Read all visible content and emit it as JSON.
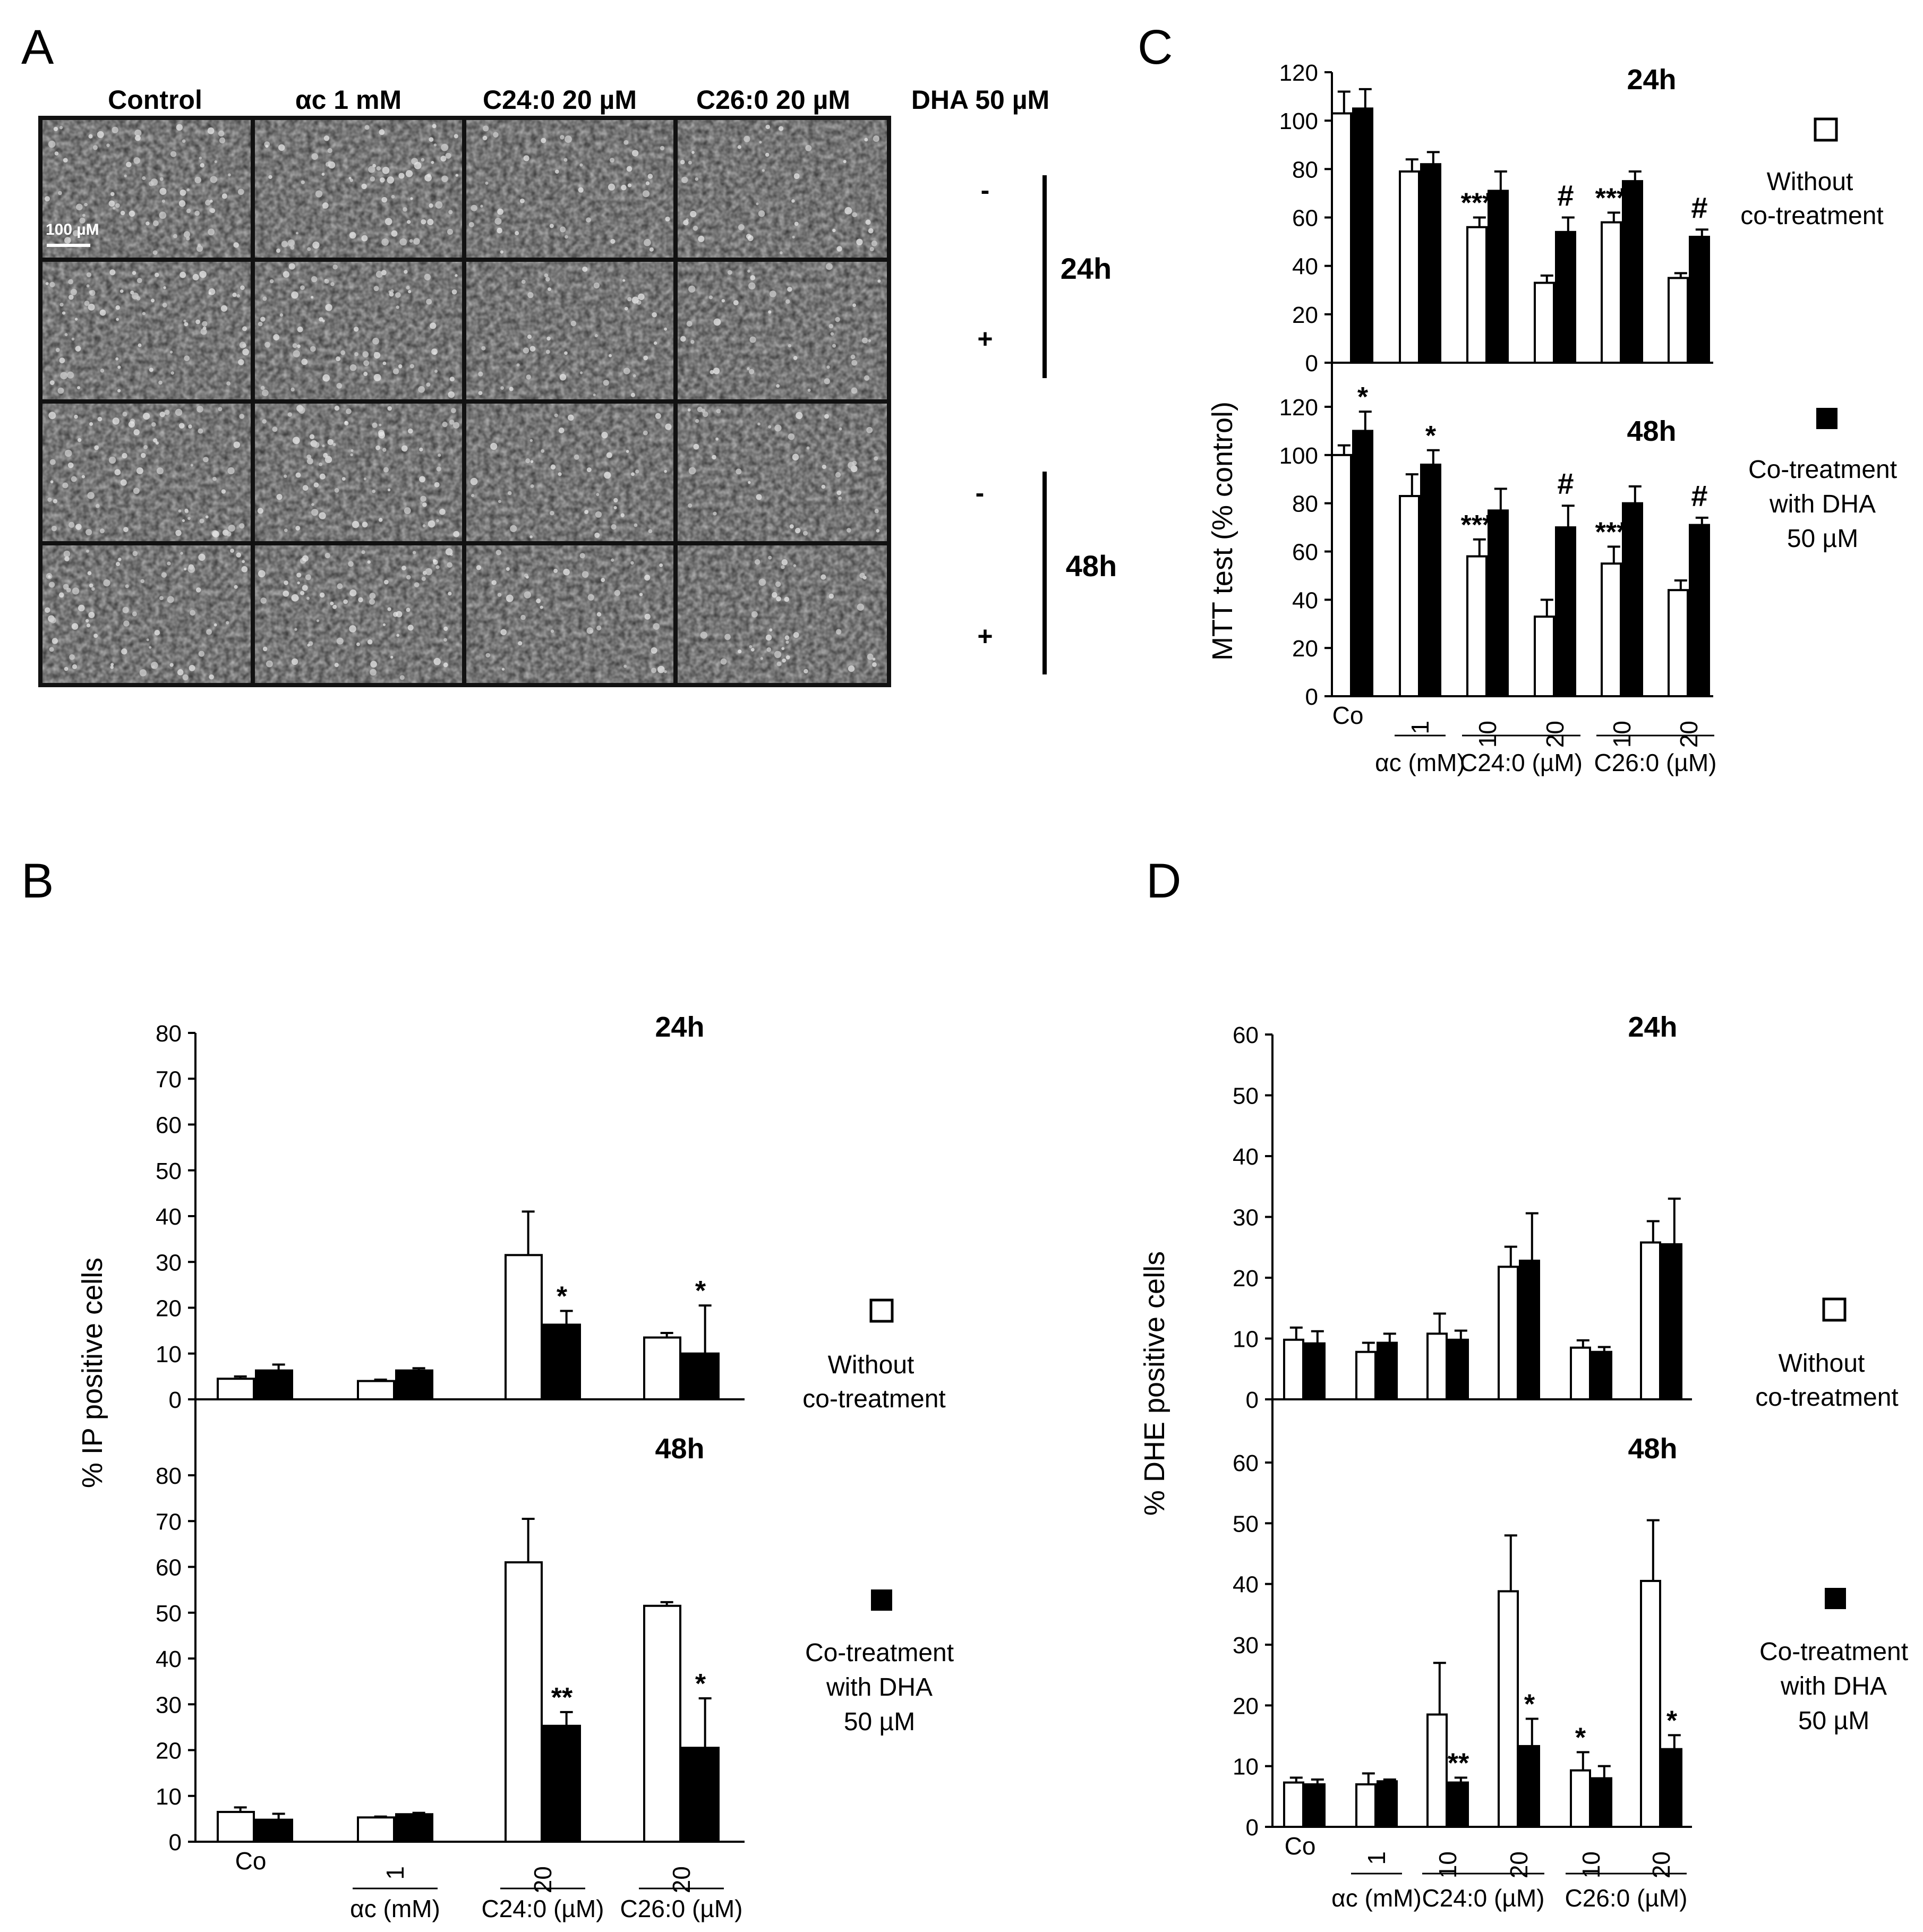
{
  "panels": {
    "A": {
      "letter": "A",
      "columns": [
        "Control",
        "αc 1 mM",
        "C24:0 20 µM",
        "C26:0 20 µM"
      ],
      "dha_header": "DHA 50 µM",
      "row_signs": [
        "-",
        "+",
        "-",
        "+"
      ],
      "time_labels": [
        "24h",
        "48h"
      ],
      "scale_bar": "100 µM"
    },
    "B": {
      "letter": "B"
    },
    "C": {
      "letter": "C"
    },
    "D": {
      "letter": "D"
    }
  },
  "legend": {
    "without": [
      "Without",
      "co-treatment"
    ],
    "with": [
      "Co-treatment",
      "with DHA",
      "50 µM"
    ]
  },
  "chart_data": [
    {
      "id": "C",
      "type": "bar",
      "ylabel": "MTT test (% control)",
      "categories": [
        "Co",
        "1",
        "10",
        "20",
        "10",
        "20"
      ],
      "groups": [
        {
          "label": "αc (mM)",
          "span": [
            1,
            1
          ]
        },
        {
          "label": "C24:0 (µM)",
          "span": [
            2,
            3
          ]
        },
        {
          "label": "C26:0 (µM)",
          "span": [
            4,
            5
          ]
        }
      ],
      "ylim": [
        0,
        120
      ],
      "yticks": [
        0,
        20,
        40,
        60,
        80,
        100,
        120
      ],
      "subplots": [
        {
          "title": "24h",
          "series": [
            {
              "name": "Without co-treatment",
              "values": [
                103,
                79,
                56,
                33,
                58,
                35
              ],
              "errors": [
                9,
                5,
                4,
                3,
                4,
                2
              ]
            },
            {
              "name": "Co-treatment with DHA 50 µM",
              "values": [
                105,
                82,
                71,
                54,
                75,
                52
              ],
              "errors": [
                8,
                5,
                8,
                6,
                4,
                3
              ]
            }
          ],
          "annotations": [
            {
              "category": 2,
              "series": 0,
              "text": "***"
            },
            {
              "category": 3,
              "series": 1,
              "text": "#"
            },
            {
              "category": 4,
              "series": 0,
              "text": "***"
            },
            {
              "category": 5,
              "series": 1,
              "text": "#"
            }
          ]
        },
        {
          "title": "48h",
          "series": [
            {
              "name": "Without co-treatment",
              "values": [
                100,
                83,
                58,
                33,
                55,
                44
              ],
              "errors": [
                4,
                9,
                7,
                7,
                7,
                4
              ]
            },
            {
              "name": "Co-treatment with DHA 50 µM",
              "values": [
                110,
                96,
                77,
                70,
                80,
                71
              ],
              "errors": [
                8,
                6,
                9,
                9,
                7,
                3
              ]
            }
          ],
          "annotations": [
            {
              "category": 0,
              "series": 1,
              "text": "*"
            },
            {
              "category": 1,
              "series": 1,
              "text": "*"
            },
            {
              "category": 2,
              "series": 0,
              "text": "***"
            },
            {
              "category": 3,
              "series": 1,
              "text": "#"
            },
            {
              "category": 4,
              "series": 0,
              "text": "***"
            },
            {
              "category": 5,
              "series": 1,
              "text": "#"
            }
          ]
        }
      ]
    },
    {
      "id": "B",
      "type": "bar",
      "ylabel": "% IP positive cells",
      "categories": [
        "Co",
        "1",
        "20",
        "20"
      ],
      "groups": [
        {
          "label": "αc (mM)",
          "span": [
            1,
            1
          ]
        },
        {
          "label": "C24:0 (µM)",
          "span": [
            2,
            2
          ]
        },
        {
          "label": "C26:0 (µM)",
          "span": [
            3,
            3
          ]
        }
      ],
      "ylim": [
        0,
        80
      ],
      "yticks": [
        0,
        10,
        20,
        30,
        40,
        50,
        60,
        70,
        80
      ],
      "subplots": [
        {
          "title": "24h",
          "series": [
            {
              "name": "Without co-treatment",
              "values": [
                4.5,
                4,
                31.5,
                13.5
              ],
              "errors": [
                0.5,
                0.3,
                9.5,
                1
              ]
            },
            {
              "name": "Co-treatment with DHA 50 µM",
              "values": [
                6.3,
                6.3,
                16.3,
                10
              ],
              "errors": [
                1.3,
                0.5,
                3,
                10.5
              ]
            }
          ],
          "annotations": [
            {
              "category": 2,
              "series": 1,
              "text": "*"
            },
            {
              "category": 3,
              "series": 1,
              "text": "*"
            }
          ]
        },
        {
          "title": "48h",
          "series": [
            {
              "name": "Without co-treatment",
              "values": [
                6.5,
                5.3,
                61,
                51.5
              ],
              "errors": [
                1,
                0.2,
                9.5,
                0.8
              ]
            },
            {
              "name": "Co-treatment with DHA 50 µM",
              "values": [
                4.8,
                6,
                25.3,
                20.5
              ],
              "errors": [
                1.3,
                0.3,
                3,
                10.8
              ]
            }
          ],
          "annotations": [
            {
              "category": 2,
              "series": 1,
              "text": "**"
            },
            {
              "category": 3,
              "series": 1,
              "text": "*"
            }
          ]
        }
      ]
    },
    {
      "id": "D",
      "type": "bar",
      "ylabel": "% DHE positive cells",
      "categories": [
        "Co",
        "1",
        "10",
        "20",
        "10",
        "20"
      ],
      "groups": [
        {
          "label": "αc (mM)",
          "span": [
            1,
            1
          ]
        },
        {
          "label": "C24:0 (µM)",
          "span": [
            2,
            3
          ]
        },
        {
          "label": "C26:0 (µM)",
          "span": [
            4,
            5
          ]
        }
      ],
      "ylim": [
        0,
        60
      ],
      "yticks": [
        0,
        10,
        20,
        30,
        40,
        50,
        60
      ],
      "subplots": [
        {
          "title": "24h",
          "series": [
            {
              "name": "Without co-treatment",
              "values": [
                9.8,
                7.8,
                10.8,
                21.8,
                8.5,
                25.8
              ],
              "errors": [
                2,
                1.5,
                3.3,
                3.3,
                1.2,
                3.5
              ]
            },
            {
              "name": "Co-treatment with DHA 50 µM",
              "values": [
                9.2,
                9.3,
                9.8,
                22.8,
                7.8,
                25.5
              ],
              "errors": [
                2,
                1.5,
                1.5,
                7.8,
                0.8,
                7.5
              ]
            }
          ],
          "annotations": []
        },
        {
          "title": "48h",
          "series": [
            {
              "name": "Without co-treatment",
              "values": [
                7.3,
                7,
                18.5,
                38.8,
                9.3,
                40.5
              ],
              "errors": [
                0.8,
                1.8,
                8.5,
                9.2,
                3,
                10
              ]
            },
            {
              "name": "Co-treatment with DHA 50 µM",
              "values": [
                7,
                7.5,
                7.3,
                13.3,
                8,
                12.8
              ],
              "errors": [
                0.8,
                0.3,
                0.8,
                4.5,
                2,
                2.3
              ]
            }
          ],
          "annotations": [
            {
              "category": 2,
              "series": 1,
              "text": "**"
            },
            {
              "category": 3,
              "series": 1,
              "text": "*"
            },
            {
              "category": 4,
              "series": 0,
              "text": "*"
            },
            {
              "category": 5,
              "series": 1,
              "text": "*"
            }
          ]
        }
      ]
    }
  ]
}
